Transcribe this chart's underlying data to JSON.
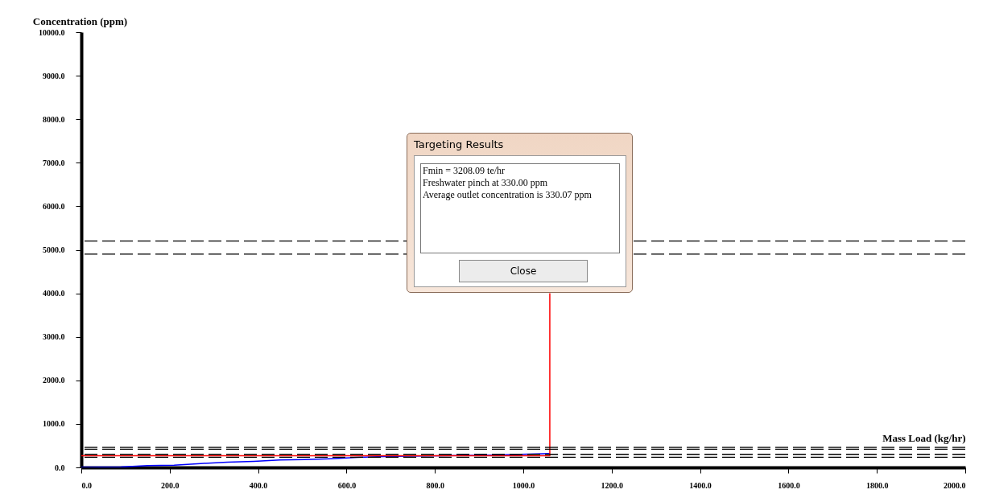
{
  "chart_data": {
    "type": "line",
    "xlabel": "Mass Load (kg/hr)",
    "ylabel": "Concentration (ppm)",
    "xlim": [
      0,
      2000
    ],
    "ylim": [
      0,
      10000
    ],
    "xticks": [
      {
        "value": 0,
        "label": "0.0"
      },
      {
        "value": 200,
        "label": "200.0"
      },
      {
        "value": 400,
        "label": "400.0"
      },
      {
        "value": 600,
        "label": "600.0"
      },
      {
        "value": 800,
        "label": "800.0"
      },
      {
        "value": 1000,
        "label": "1000.0"
      },
      {
        "value": 1200,
        "label": "1200.0"
      },
      {
        "value": 1400,
        "label": "1400.0"
      },
      {
        "value": 1600,
        "label": "1600.0"
      },
      {
        "value": 1800,
        "label": "1800.0"
      },
      {
        "value": 2000,
        "label": "2000.0"
      }
    ],
    "yticks": [
      {
        "value": 0,
        "label": "0.0"
      },
      {
        "value": 1000,
        "label": "1000.0"
      },
      {
        "value": 2000,
        "label": "2000.0"
      },
      {
        "value": 3000,
        "label": "3000.0"
      },
      {
        "value": 4000,
        "label": "4000.0"
      },
      {
        "value": 5000,
        "label": "5000.0"
      },
      {
        "value": 6000,
        "label": "6000.0"
      },
      {
        "value": 7000,
        "label": "7000.0"
      },
      {
        "value": 8000,
        "label": "8000.0"
      },
      {
        "value": 9000,
        "label": "9000.0"
      },
      {
        "value": 10000,
        "label": "10000.0"
      }
    ],
    "series": [
      {
        "color": "#0000ff",
        "x": [
          0,
          90,
          150,
          210,
          270,
          330,
          390,
          450,
          505,
          565,
          625,
          685,
          740,
          930,
          1060
        ],
        "values": [
          0,
          10,
          40,
          50,
          90,
          120,
          140,
          170,
          180,
          200,
          230,
          250,
          260,
          280,
          320
        ]
      },
      {
        "color": "#ff0000",
        "x": [
          0,
          1060,
          1060
        ],
        "values": [
          270,
          270,
          4000
        ]
      }
    ],
    "ref_lines": [
      {
        "axis": "y",
        "value": 5200,
        "color": "#000000",
        "line_style": "dashed"
      },
      {
        "axis": "y",
        "value": 4900,
        "color": "#000000",
        "line_style": "dashed"
      },
      {
        "axis": "y",
        "value": 460,
        "color": "#000000",
        "line_style": "dashed"
      },
      {
        "axis": "y",
        "value": 420,
        "color": "#000000",
        "line_style": "dashed"
      },
      {
        "axis": "y",
        "value": 300,
        "color": "#000000",
        "line_style": "dashed"
      },
      {
        "axis": "y",
        "value": 235,
        "color": "#000000",
        "line_style": "dashed"
      }
    ],
    "annotations": [
      "Targeting Results",
      "Fmin = 3208.09 te/hr",
      "Freshwater pinch at 330.00 ppm",
      "Average outlet concentration is 330.07 ppm",
      "Close"
    ],
    "grid": false,
    "marker": "none",
    "line_style": "solid"
  }
}
